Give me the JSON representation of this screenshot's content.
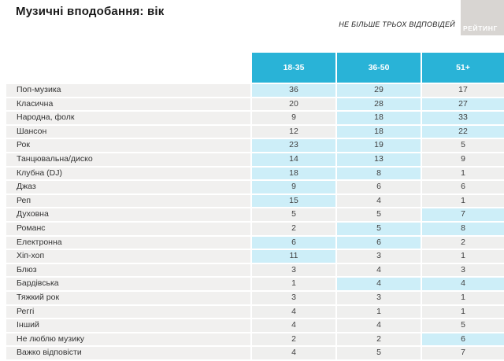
{
  "header": {
    "title": "Музичні вподобання: вік",
    "note": "НЕ БІЛЬШЕ ТРЬОХ ВІДПОВІДЕЙ",
    "logo_text": "РЕЙТИНГ"
  },
  "colors": {
    "header_bg": "#29b3d7",
    "highlight_bg": "#cdeef8",
    "cell_bg": "#efefee",
    "label_bg": "#f1f0ef",
    "logo_bg": "#d8d5d2"
  },
  "chart_data": {
    "type": "table",
    "title": "Музичні вподобання: вік",
    "subtitle": "НЕ БІЛЬШЕ ТРЬОХ ВІДПОВІДЕЙ",
    "columns": [
      "18-35",
      "36-50",
      "51+"
    ],
    "rows": [
      {
        "label": "Поп-музика",
        "values": [
          36,
          29,
          17
        ],
        "highlighted": [
          true,
          true,
          false
        ]
      },
      {
        "label": "Класична",
        "values": [
          20,
          28,
          27
        ],
        "highlighted": [
          false,
          true,
          true
        ]
      },
      {
        "label": "Народна, фолк",
        "values": [
          9,
          18,
          33
        ],
        "highlighted": [
          false,
          true,
          true
        ]
      },
      {
        "label": "Шансон",
        "values": [
          12,
          18,
          22
        ],
        "highlighted": [
          false,
          true,
          true
        ]
      },
      {
        "label": "Рок",
        "values": [
          23,
          19,
          5
        ],
        "highlighted": [
          true,
          true,
          false
        ]
      },
      {
        "label": "Танцювальна/диско",
        "values": [
          14,
          13,
          9
        ],
        "highlighted": [
          true,
          true,
          false
        ]
      },
      {
        "label": "Клубна (DJ)",
        "values": [
          18,
          8,
          1
        ],
        "highlighted": [
          true,
          true,
          false
        ]
      },
      {
        "label": "Джаз",
        "values": [
          9,
          6,
          6
        ],
        "highlighted": [
          true,
          false,
          false
        ]
      },
      {
        "label": "Реп",
        "values": [
          15,
          4,
          1
        ],
        "highlighted": [
          true,
          false,
          false
        ]
      },
      {
        "label": "Духовна",
        "values": [
          5,
          5,
          7
        ],
        "highlighted": [
          false,
          false,
          true
        ]
      },
      {
        "label": "Романс",
        "values": [
          2,
          5,
          8
        ],
        "highlighted": [
          false,
          true,
          true
        ]
      },
      {
        "label": "Електронна",
        "values": [
          6,
          6,
          2
        ],
        "highlighted": [
          true,
          true,
          false
        ]
      },
      {
        "label": "Хіп-хоп",
        "values": [
          11,
          3,
          1
        ],
        "highlighted": [
          true,
          false,
          false
        ]
      },
      {
        "label": "Блюз",
        "values": [
          3,
          4,
          3
        ],
        "highlighted": [
          false,
          false,
          false
        ]
      },
      {
        "label": "Бардівська",
        "values": [
          1,
          4,
          4
        ],
        "highlighted": [
          false,
          true,
          true
        ]
      },
      {
        "label": "Тяжкий рок",
        "values": [
          3,
          3,
          1
        ],
        "highlighted": [
          false,
          false,
          false
        ]
      },
      {
        "label": "Реггі",
        "values": [
          4,
          1,
          1
        ],
        "highlighted": [
          false,
          false,
          false
        ]
      },
      {
        "label": "Інший",
        "values": [
          4,
          4,
          5
        ],
        "highlighted": [
          false,
          false,
          false
        ]
      },
      {
        "label": "Не люблю музику",
        "values": [
          2,
          2,
          6
        ],
        "highlighted": [
          false,
          false,
          true
        ]
      },
      {
        "label": "Важко відповісти",
        "values": [
          4,
          5,
          7
        ],
        "highlighted": [
          false,
          false,
          false
        ]
      }
    ]
  }
}
